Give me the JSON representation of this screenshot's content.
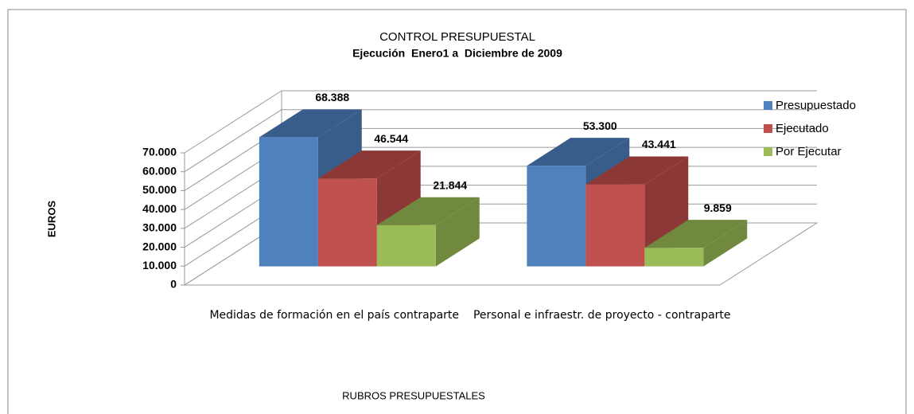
{
  "chart_data": {
    "type": "bar3d",
    "title": "CONTROL PRESUPUESTAL",
    "subtitle": "Ejecución  Enero1 a  Diciembre de 2009",
    "y_label": "EUROS",
    "x_label": "RUBROS PRESUPUESTALES",
    "categories": [
      "Medidas de formación en el país contraparte",
      "Personal e infraestr. de proyecto - contraparte"
    ],
    "series": [
      {
        "name": "Presupuestado",
        "color": "#4f81bd",
        "shade": "#385d8a",
        "values": [
          68388,
          53300
        ],
        "value_labels": [
          "68.388",
          "53.300"
        ]
      },
      {
        "name": "Ejecutado",
        "color": "#c0504d",
        "shade": "#8c3836",
        "values": [
          46544,
          43441
        ],
        "value_labels": [
          "46.544",
          "43.441"
        ]
      },
      {
        "name": "Por Ejecutar",
        "color": "#9bbb59",
        "shade": "#71893f",
        "values": [
          21844,
          9859
        ],
        "value_labels": [
          "21.844",
          "9.859"
        ]
      }
    ],
    "ylim": [
      0,
      70000
    ],
    "yticks": [
      0,
      {
        "value": 10000,
        "label": "10.000"
      },
      {
        "value": 20000,
        "label": "20.000"
      },
      {
        "value": 30000,
        "label": "30.000"
      },
      {
        "value": 40000,
        "label": "40.000"
      },
      {
        "value": 50000,
        "label": "50.000"
      },
      {
        "value": 60000,
        "label": "60.000"
      },
      {
        "value": 70000,
        "label": "70.000"
      }
    ],
    "grid": true,
    "legend": "right"
  }
}
